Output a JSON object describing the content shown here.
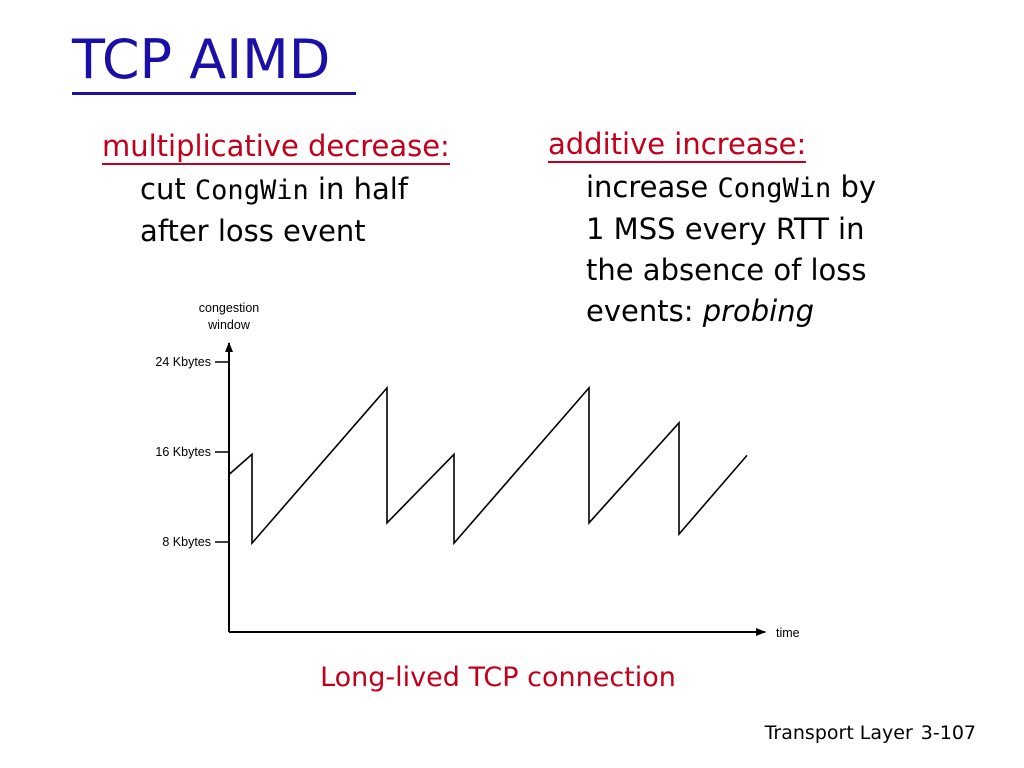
{
  "slide": {
    "title": "TCP AIMD",
    "md": {
      "heading": "multiplicative decrease:",
      "line1_pre": "cut ",
      "line1_code": "CongWin",
      "line1_post": " in half",
      "line2": "after loss event"
    },
    "ai": {
      "heading": "additive increase:",
      "line1_pre": "increase ",
      "line1_code": "CongWin",
      "line1_post": " by",
      "line2": "1 MSS every RTT in",
      "line3": "the absence of loss",
      "line4_pre": "events: ",
      "line4_italic": "probing"
    },
    "caption": "Long-lived TCP connection",
    "footer": {
      "section": "Transport Layer",
      "page": "3-107"
    },
    "colors": {
      "title": "#1a0fa8",
      "heading": "#c2001b",
      "text": "#000000"
    }
  },
  "chart_data": {
    "type": "line",
    "ylabel_line1": "congestion",
    "ylabel_line2": "window",
    "xlabel": "time",
    "yticks": [
      {
        "value": 24,
        "label": "24 Kbytes"
      },
      {
        "value": 16,
        "label": "16 Kbytes"
      },
      {
        "value": 8,
        "label": "8 Kbytes"
      }
    ],
    "ylim": [
      0,
      27
    ],
    "xlim": [
      0,
      600
    ],
    "series": [
      {
        "points": [
          [
            0,
            14.0
          ],
          [
            23,
            15.8
          ],
          [
            23,
            7.9
          ],
          [
            158,
            21.7
          ],
          [
            158,
            9.7
          ],
          [
            225,
            15.8
          ],
          [
            225,
            7.9
          ],
          [
            360,
            21.7
          ],
          [
            360,
            9.7
          ],
          [
            450,
            18.6
          ],
          [
            450,
            8.7
          ],
          [
            518,
            15.7
          ]
        ]
      }
    ]
  }
}
